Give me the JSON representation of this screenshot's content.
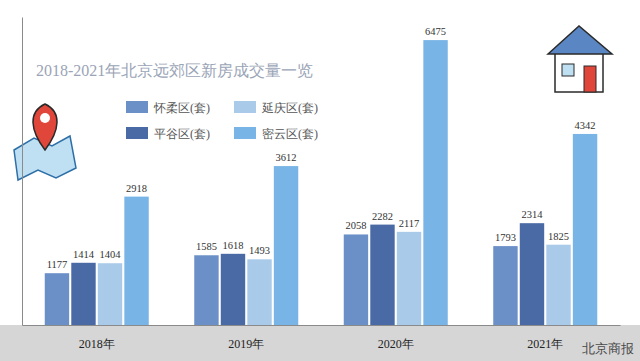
{
  "chart_data": {
    "type": "bar",
    "title": "2018-2021年北京远郊区新房成交量一览",
    "categories": [
      "2018年",
      "2019年",
      "2020年",
      "2021年"
    ],
    "series": [
      {
        "name": "怀柔区(套)",
        "color": "#6b8fc7",
        "values": [
          1177,
          1585,
          2058,
          1793
        ]
      },
      {
        "name": "平谷区(套)",
        "color": "#4a6aa5",
        "values": [
          1414,
          1618,
          2282,
          2314
        ]
      },
      {
        "name": "延庆区(套)",
        "color": "#a9cbe9",
        "values": [
          1404,
          1493,
          2117,
          1825
        ]
      },
      {
        "name": "密云区(套)",
        "color": "#78b4e6",
        "values": [
          2918,
          3612,
          6475,
          4342
        ]
      }
    ],
    "ylim": [
      0,
      7000
    ],
    "grid": false,
    "legend": "top-left",
    "data_labels": true,
    "tick_labels": "x",
    "source": "北京商报"
  }
}
